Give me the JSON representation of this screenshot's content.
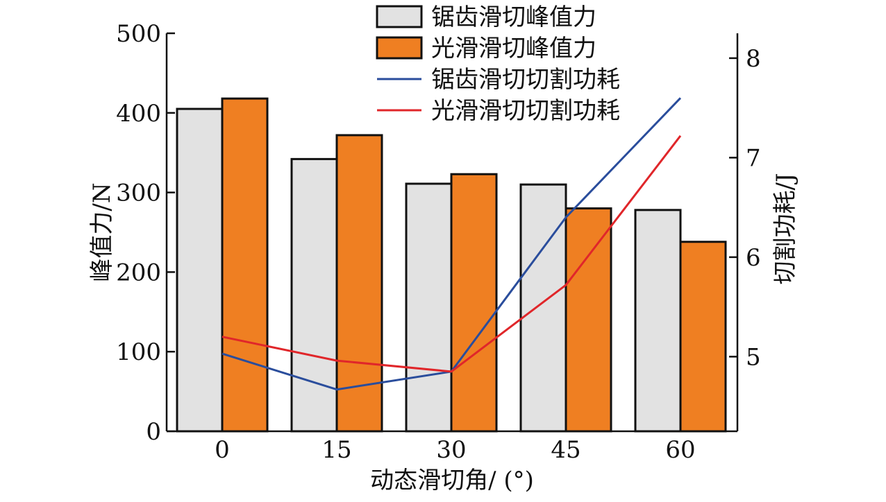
{
  "chart_data": {
    "type": "bar",
    "title": "",
    "categories": [
      "0",
      "15",
      "30",
      "45",
      "60"
    ],
    "xlabel": "动态滑切角/ (°)",
    "ylabel": "峰值力/N",
    "y2label": "切割功耗/J",
    "ylim": [
      0,
      500
    ],
    "yticks": [
      "0",
      "100",
      "200",
      "300",
      "400",
      "500"
    ],
    "y2lim": [
      4.25,
      8.25
    ],
    "y2ticks": [
      "5",
      "6",
      "7",
      "8"
    ],
    "grid": false,
    "legend_position": "top-center",
    "series": [
      {
        "name": "锯齿滑切峰值力",
        "kind": "bar",
        "axis": "left",
        "color": "#e2e2e2",
        "values": [
          405,
          342,
          311,
          310,
          278
        ]
      },
      {
        "name": "光滑滑切峰值力",
        "kind": "bar",
        "axis": "left",
        "color": "#ef7f22",
        "values": [
          418,
          372,
          323,
          280,
          238
        ]
      },
      {
        "name": "锯齿滑切切割功耗",
        "kind": "line",
        "axis": "right",
        "color": "#2a4d9c",
        "values": [
          5.03,
          4.67,
          4.85,
          6.4,
          7.6
        ]
      },
      {
        "name": "光滑滑切切割功耗",
        "kind": "line",
        "axis": "right",
        "color": "#e0262a",
        "values": [
          5.2,
          4.96,
          4.85,
          5.72,
          7.22
        ]
      }
    ]
  }
}
